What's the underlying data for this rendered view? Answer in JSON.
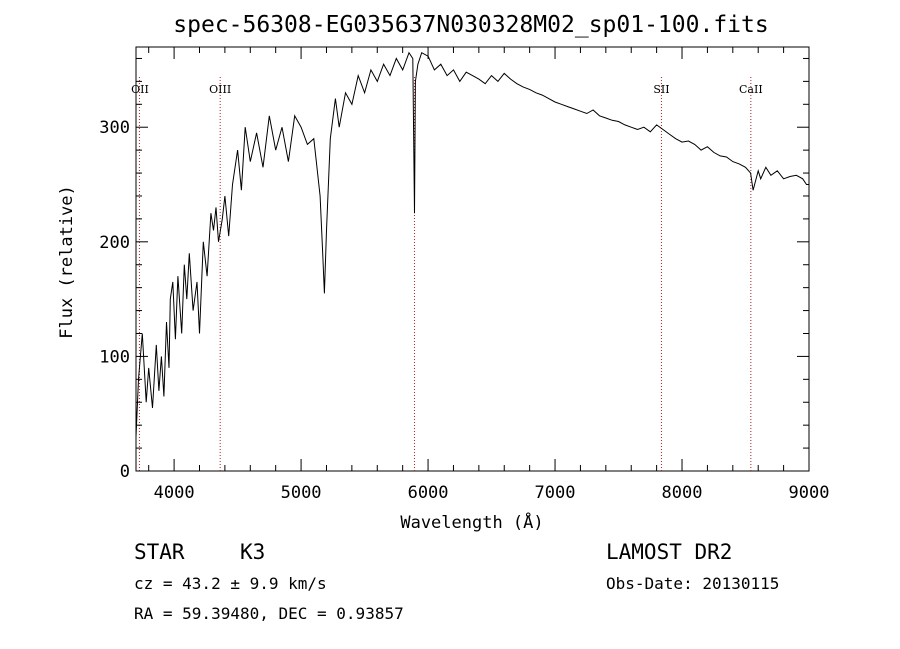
{
  "chart_data": {
    "type": "line",
    "title": "spec-56308-EG035637N030328M02_sp01-100.fits",
    "xlabel": "Wavelength (Å)",
    "ylabel": "Flux (relative)",
    "xlim": [
      3700,
      9000
    ],
    "ylim": [
      0,
      370
    ],
    "x_ticks": [
      4000,
      5000,
      6000,
      7000,
      8000,
      9000
    ],
    "y_ticks": [
      0,
      100,
      200,
      300
    ],
    "grid": false,
    "series": [
      {
        "x": [
          3700,
          3720,
          3750,
          3780,
          3800,
          3830,
          3860,
          3880,
          3900,
          3920,
          3940,
          3960,
          3970,
          3990,
          4010,
          4030,
          4060,
          4080,
          4100,
          4120,
          4150,
          4180,
          4200,
          4230,
          4260,
          4290,
          4310,
          4330,
          4350,
          4380,
          4400,
          4430,
          4460,
          4500,
          4530,
          4560,
          4600,
          4650,
          4700,
          4750,
          4800,
          4850,
          4900,
          4950,
          5000,
          5050,
          5100,
          5150,
          5170,
          5184,
          5200,
          5230,
          5270,
          5300,
          5350,
          5400,
          5450,
          5500,
          5550,
          5600,
          5650,
          5700,
          5750,
          5800,
          5850,
          5880,
          5893,
          5900,
          5920,
          5950,
          6000,
          6050,
          6100,
          6150,
          6200,
          6250,
          6300,
          6350,
          6400,
          6450,
          6500,
          6550,
          6600,
          6650,
          6700,
          6750,
          6800,
          6850,
          6900,
          6950,
          7000,
          7050,
          7100,
          7150,
          7200,
          7250,
          7300,
          7350,
          7400,
          7450,
          7500,
          7550,
          7600,
          7650,
          7700,
          7750,
          7800,
          7850,
          7900,
          7950,
          8000,
          8050,
          8100,
          8150,
          8200,
          8250,
          8300,
          8350,
          8400,
          8450,
          8500,
          8540,
          8560,
          8600,
          8620,
          8660,
          8700,
          8750,
          8800,
          8850,
          8900,
          8950,
          8980,
          9000
        ],
        "y": [
          30,
          80,
          120,
          60,
          90,
          55,
          110,
          70,
          100,
          65,
          130,
          90,
          150,
          165,
          115,
          170,
          120,
          180,
          150,
          190,
          140,
          165,
          120,
          200,
          170,
          225,
          210,
          230,
          200,
          220,
          240,
          205,
          250,
          280,
          245,
          300,
          270,
          295,
          265,
          310,
          280,
          300,
          270,
          310,
          300,
          285,
          290,
          240,
          190,
          155,
          210,
          290,
          325,
          300,
          330,
          320,
          345,
          330,
          350,
          340,
          355,
          345,
          360,
          350,
          365,
          360,
          225,
          340,
          355,
          365,
          362,
          350,
          355,
          345,
          350,
          340,
          348,
          345,
          342,
          338,
          345,
          340,
          347,
          342,
          338,
          335,
          333,
          330,
          328,
          325,
          322,
          320,
          318,
          316,
          314,
          312,
          315,
          310,
          308,
          306,
          305,
          302,
          300,
          298,
          300,
          296,
          302,
          298,
          294,
          290,
          287,
          288,
          285,
          280,
          283,
          278,
          275,
          274,
          270,
          268,
          265,
          260,
          245,
          262,
          255,
          265,
          258,
          262,
          255,
          257,
          258,
          255,
          250,
          250
        ]
      }
    ],
    "lines": [
      {
        "label": "OII",
        "x": 3727
      },
      {
        "label": "OIII",
        "x": 4363
      },
      {
        "label": "",
        "x": 5893
      },
      {
        "label": "SII",
        "x": 7838
      },
      {
        "label": "CaII",
        "x": 8542
      }
    ],
    "line_color": "#b22222"
  },
  "info": {
    "object_type": "STAR",
    "subclass": "K3",
    "survey": "LAMOST DR2",
    "redshift": "cz = 43.2 ± 9.9 km/s",
    "obs_date": "Obs-Date: 20130115",
    "coords": "RA =  59.39480, DEC =   0.93857"
  }
}
